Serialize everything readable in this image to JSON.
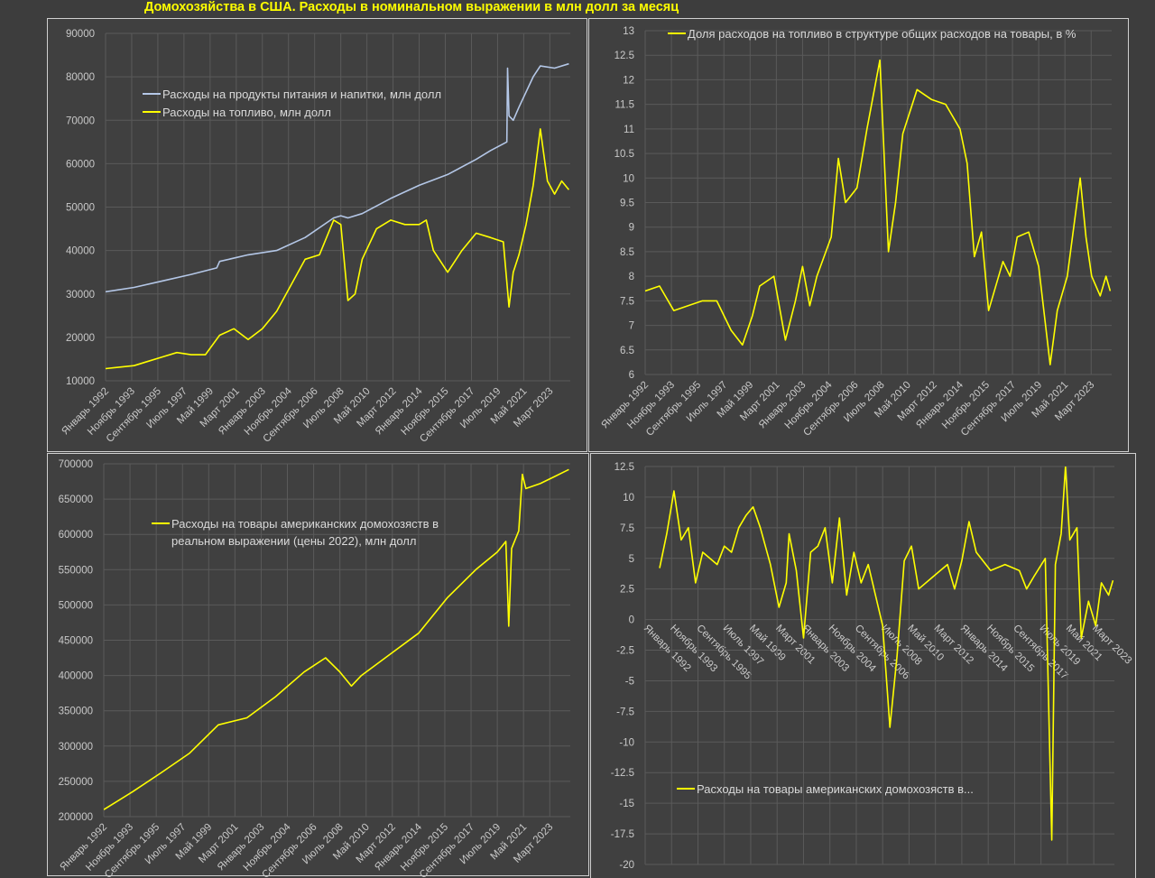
{
  "title": "Домохозяйства в США. Расходы в номинальном выражении в млн долл за месяц",
  "colors": {
    "food": "#b4c7e7",
    "yellow": "#ffff00",
    "grid": "#5a5a5a",
    "panel": "#404040"
  },
  "x_tick_labels": [
    "Январь 1992",
    "Ноябрь 1993",
    "Сентябрь 1995",
    "Июль 1997",
    "Май 1999",
    "Март 2001",
    "Январь 2003",
    "Ноябрь 2004",
    "Сентябрь 2006",
    "Июль 2008",
    "Май 2010",
    "Март 2012",
    "Январь 2014",
    "Ноябрь 2015",
    "Сентябрь 2017",
    "Июль 2019",
    "Май 2021",
    "Март 2023"
  ],
  "chart_data": [
    {
      "type": "line",
      "title": "",
      "ylim": [
        10000,
        90000
      ],
      "yticks": [
        "10000",
        "20000",
        "30000",
        "40000",
        "50000",
        "60000",
        "70000",
        "80000",
        "90000"
      ],
      "xlim": [
        1992,
        2024.6
      ],
      "legend": "top-left",
      "series": [
        {
          "name": "Расходы на продукты питания и напитки, млн долл",
          "color": "#b4c7e7",
          "x": [
            1992,
            1994,
            1996,
            1998,
            1999.8,
            2000,
            2002,
            2004,
            2006,
            2008,
            2008.5,
            2009,
            2010,
            2012,
            2014,
            2016,
            2018,
            2019,
            2020.15,
            2020.2,
            2020.3,
            2020.6,
            2021,
            2022,
            2022.5,
            2023.5,
            2024.5
          ],
          "y": [
            30500,
            31500,
            33000,
            34500,
            36000,
            37500,
            39000,
            40000,
            43000,
            47500,
            48000,
            47500,
            48500,
            52000,
            55000,
            57500,
            61000,
            63000,
            65000,
            82000,
            71000,
            70000,
            73000,
            80000,
            82500,
            82000,
            83000
          ]
        },
        {
          "name": "Расходы на топливо, млн долл",
          "color": "#ffff00",
          "x": [
            1992,
            1994,
            1995,
            1996,
            1997,
            1998,
            1999,
            2000,
            2001,
            2002,
            2003,
            2004,
            2005,
            2006,
            2007,
            2008,
            2008.5,
            2009,
            2009.5,
            2010,
            2011,
            2012,
            2013,
            2014,
            2014.5,
            2015,
            2016,
            2017,
            2018,
            2019,
            2019.9,
            2020.3,
            2020.6,
            2021,
            2021.5,
            2022,
            2022.5,
            2023,
            2023.5,
            2024,
            2024.5
          ],
          "y": [
            12800,
            13500,
            14500,
            15500,
            16500,
            16000,
            16000,
            20500,
            22000,
            19500,
            22000,
            26000,
            32000,
            38000,
            39000,
            47000,
            46000,
            28500,
            30000,
            38000,
            45000,
            47000,
            46000,
            46000,
            47000,
            40000,
            35000,
            40000,
            44000,
            43000,
            42000,
            27000,
            35000,
            39000,
            46000,
            55000,
            68000,
            56000,
            53000,
            56000,
            54000
          ]
        }
      ]
    },
    {
      "type": "line",
      "ylim": [
        6,
        13
      ],
      "yticks": [
        "6",
        "6.5",
        "7",
        "7.5",
        "8",
        "8.5",
        "9",
        "9.5",
        "10",
        "10.5",
        "11",
        "11.5",
        "12",
        "12.5",
        "13"
      ],
      "xlim": [
        1992,
        2024.6
      ],
      "legend": "top-left",
      "series": [
        {
          "name": "Доля расходов на топливо в структуре общих расходов на товары, в %",
          "color": "#ffff00",
          "x": [
            1992,
            1993,
            1994,
            1995,
            1996,
            1997,
            1998,
            1998.8,
            1999.5,
            2000,
            2001,
            2001.8,
            2002.5,
            2003,
            2003.5,
            2004,
            2005,
            2005.5,
            2006,
            2006.8,
            2007.5,
            2008.4,
            2009,
            2009.5,
            2010,
            2011,
            2012,
            2013,
            2014,
            2014.5,
            2015,
            2015.5,
            2016,
            2017,
            2017.5,
            2018,
            2018.8,
            2019.5,
            2020.3,
            2020.8,
            2021.5,
            2022.4,
            2022.8,
            2023.2,
            2023.8,
            2024.2,
            2024.5
          ],
          "y": [
            7.7,
            7.8,
            7.3,
            7.4,
            7.5,
            7.5,
            6.9,
            6.6,
            7.2,
            7.8,
            8.0,
            6.7,
            7.5,
            8.2,
            7.4,
            8.0,
            8.8,
            10.4,
            9.5,
            9.8,
            11.0,
            12.4,
            8.5,
            9.5,
            10.9,
            11.8,
            11.6,
            11.5,
            11.0,
            10.3,
            8.4,
            8.9,
            7.3,
            8.3,
            8.0,
            8.8,
            8.9,
            8.2,
            6.2,
            7.3,
            8.0,
            10.0,
            8.8,
            8.0,
            7.6,
            8.0,
            7.7
          ]
        }
      ]
    },
    {
      "type": "line",
      "ylim": [
        200000,
        700000
      ],
      "yticks": [
        "200000",
        "250000",
        "300000",
        "350000",
        "400000",
        "450000",
        "500000",
        "550000",
        "600000",
        "650000",
        "700000"
      ],
      "xlim": [
        1992,
        2024.6
      ],
      "legend": "top-left",
      "series": [
        {
          "name": "Расходы на товары американских домохозяств в реальном выражении (цены 2022), млн долл",
          "name_lines": [
            "Расходы на товары американских домохозяств в",
            "реальном выражении (цены 2022), млн долл"
          ],
          "color": "#ffff00",
          "x": [
            1992,
            1994,
            1996,
            1998,
            2000,
            2002,
            2004,
            2006,
            2007.5,
            2008.5,
            2009.3,
            2010,
            2012,
            2014,
            2016,
            2018,
            2019.5,
            2020.1,
            2020.3,
            2020.5,
            2021,
            2021.25,
            2021.5,
            2022.5,
            2023.5,
            2024.5
          ],
          "y": [
            210000,
            235000,
            262000,
            290000,
            330000,
            340000,
            370000,
            405000,
            425000,
            405000,
            385000,
            400000,
            430000,
            460000,
            510000,
            550000,
            575000,
            590000,
            470000,
            580000,
            605000,
            685000,
            665000,
            672000,
            682000,
            692000
          ]
        }
      ]
    },
    {
      "type": "line",
      "ylim": [
        -20,
        12.5
      ],
      "yticks": [
        "-20",
        "-17.5",
        "-15",
        "-12.5",
        "-10",
        "-7.5",
        "-5",
        "-2.5",
        "0",
        "2.5",
        "5",
        "7.5",
        "10",
        "12.5"
      ],
      "xlim": [
        1992,
        2024.6
      ],
      "legend": "bottom-left",
      "series": [
        {
          "name": "Расходы на товары американских домохозяств в...",
          "color": "#ffff00",
          "x": [
            1993,
            1993.5,
            1994,
            1994.5,
            1995,
            1995.5,
            1996,
            1997,
            1997.5,
            1998,
            1998.5,
            1999,
            1999.5,
            2000,
            2000.7,
            2001.3,
            2001.8,
            2002,
            2002.5,
            2003,
            2003.5,
            2004,
            2004.5,
            2005,
            2005.5,
            2006,
            2006.5,
            2007,
            2007.5,
            2008,
            2008.5,
            2009,
            2009.5,
            2010,
            2010.5,
            2011,
            2012,
            2013,
            2013.5,
            2014,
            2014.5,
            2015,
            2016,
            2017,
            2018,
            2018.5,
            2019,
            2019.8,
            2020.25,
            2020.5,
            2020.9,
            2021.2,
            2021.5,
            2022,
            2022.3,
            2022.8,
            2023.3,
            2023.7,
            2024.2,
            2024.5
          ],
          "y": [
            4.2,
            7.0,
            10.5,
            6.5,
            7.5,
            3.0,
            5.5,
            4.5,
            6.0,
            5.5,
            7.5,
            8.5,
            9.2,
            7.5,
            4.5,
            1.0,
            3.0,
            7.0,
            4.0,
            -1.5,
            5.5,
            6.0,
            7.5,
            3.0,
            8.3,
            2.0,
            5.5,
            3.0,
            4.5,
            2.0,
            -0.5,
            -8.8,
            -3.0,
            4.8,
            6.0,
            2.5,
            3.5,
            4.5,
            2.5,
            4.8,
            8.0,
            5.5,
            4.0,
            4.5,
            4.0,
            2.5,
            3.5,
            5.0,
            -18,
            4.5,
            7.0,
            12.5,
            6.5,
            7.5,
            -1.5,
            1.5,
            -0.5,
            3.0,
            2.0,
            3.2
          ]
        }
      ]
    }
  ]
}
